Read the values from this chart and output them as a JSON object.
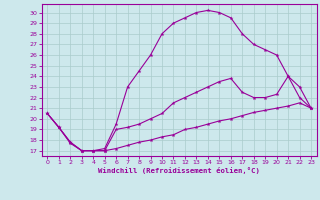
{
  "xlabel": "Windchill (Refroidissement éolien,°C)",
  "bg_color": "#cde8ec",
  "line_color": "#990099",
  "grid_color": "#aacccc",
  "xlim": [
    -0.5,
    23.5
  ],
  "ylim": [
    16.5,
    30.8
  ],
  "xticks": [
    0,
    1,
    2,
    3,
    4,
    5,
    6,
    7,
    8,
    9,
    10,
    11,
    12,
    13,
    14,
    15,
    16,
    17,
    18,
    19,
    20,
    21,
    22,
    23
  ],
  "yticks": [
    17,
    18,
    19,
    20,
    21,
    22,
    23,
    24,
    25,
    26,
    27,
    28,
    29,
    30
  ],
  "line1_x": [
    0,
    1,
    2,
    3,
    4,
    5,
    6,
    7,
    8,
    9,
    10,
    11,
    12,
    13,
    14,
    15,
    16,
    17,
    18,
    19,
    20,
    21,
    22,
    23
  ],
  "line1_y": [
    20.5,
    19.2,
    17.7,
    17.0,
    17.0,
    17.0,
    17.2,
    17.5,
    17.8,
    18.0,
    18.3,
    18.5,
    19.0,
    19.2,
    19.5,
    19.8,
    20.0,
    20.3,
    20.6,
    20.8,
    21.0,
    21.2,
    21.5,
    21.0
  ],
  "line2_x": [
    0,
    1,
    2,
    3,
    4,
    5,
    6,
    7,
    8,
    9,
    10,
    11,
    12,
    13,
    14,
    15,
    16,
    17,
    18,
    19,
    20,
    21,
    22,
    23
  ],
  "line2_y": [
    20.5,
    19.2,
    17.8,
    17.0,
    17.0,
    17.0,
    19.0,
    19.2,
    19.5,
    20.0,
    20.5,
    21.5,
    22.0,
    22.5,
    23.0,
    23.5,
    23.8,
    22.5,
    22.0,
    22.0,
    22.3,
    24.0,
    23.0,
    21.0
  ],
  "line3_x": [
    0,
    1,
    2,
    3,
    4,
    5,
    6,
    7,
    8,
    9,
    10,
    11,
    12,
    13,
    14,
    15,
    16,
    17,
    18,
    19,
    20,
    21,
    22,
    23
  ],
  "line3_y": [
    20.5,
    19.2,
    17.8,
    17.0,
    17.0,
    17.2,
    19.5,
    23.0,
    24.5,
    26.0,
    28.0,
    29.0,
    29.5,
    30.0,
    30.2,
    30.0,
    29.5,
    28.0,
    27.0,
    26.5,
    26.0,
    24.0,
    22.0,
    21.0
  ]
}
